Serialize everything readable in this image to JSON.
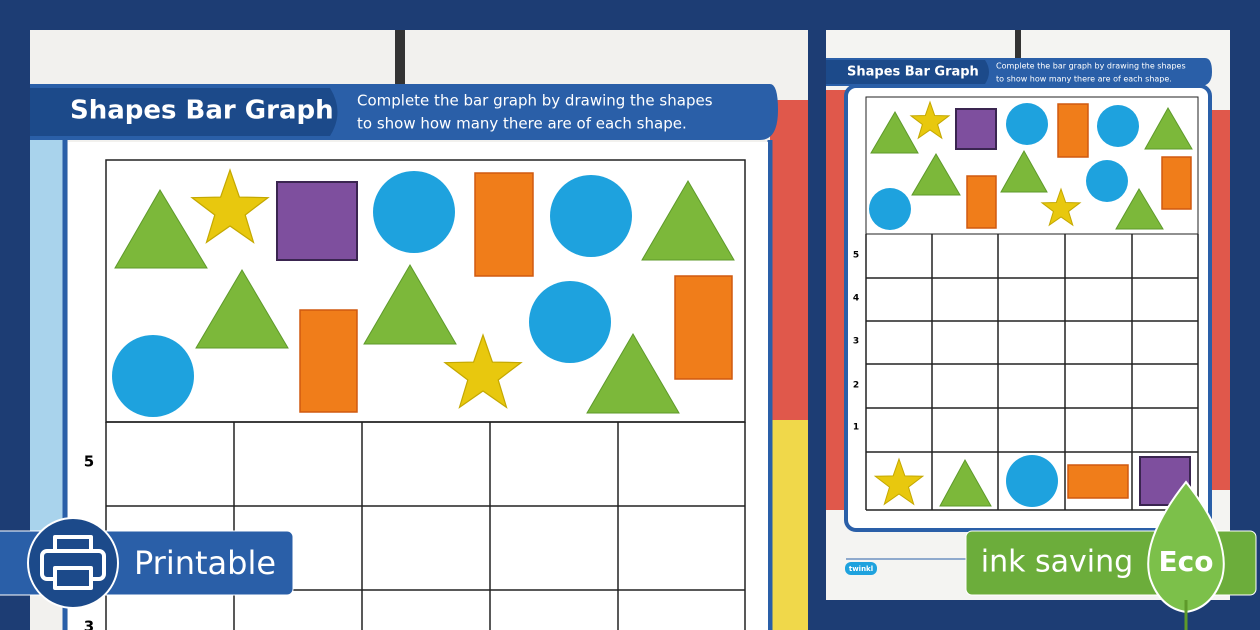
{
  "left_sheet": {
    "title": "Shapes Bar Graph",
    "instructions": [
      "Complete the bar graph by drawing the shapes",
      "to show how many there are of each shape."
    ],
    "row_labels": [
      5,
      3
    ]
  },
  "right_sheet": {
    "title": "Shapes Bar Graph",
    "instructions": [
      "Complete the bar graph by drawing the shapes",
      "to show how many there are of each shape."
    ],
    "row_labels": [
      5,
      4,
      3,
      2,
      1
    ],
    "footer_logo": "twinkl"
  },
  "badges": {
    "printable": "Printable",
    "ink_saving": "ink saving",
    "eco": "Eco"
  }
}
